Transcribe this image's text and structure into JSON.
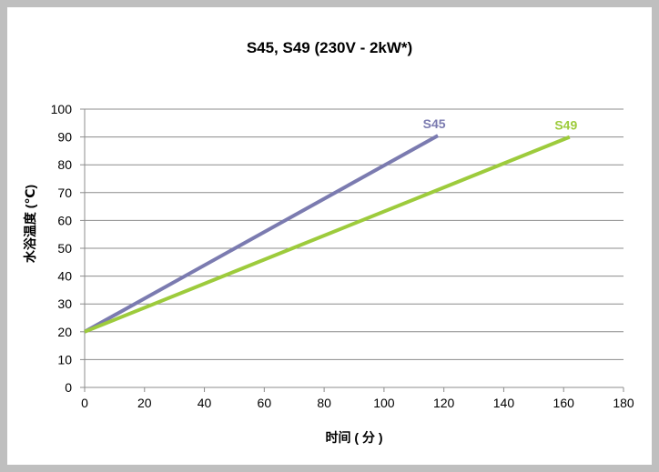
{
  "chart_data": {
    "type": "line",
    "title": "S45, S49 (230V - 2kW*)",
    "xlabel": "时间 ( 分 )",
    "ylabel": "水浴温度 (℃)",
    "xlim": [
      0,
      180
    ],
    "ylim": [
      0,
      100
    ],
    "x_ticks": [
      "0",
      "20",
      "40",
      "60",
      "80",
      "100",
      "120",
      "140",
      "160",
      "180"
    ],
    "y_ticks": [
      "0",
      "10",
      "20",
      "30",
      "40",
      "50",
      "60",
      "70",
      "80",
      "90",
      "100"
    ],
    "grid": true,
    "series": [
      {
        "name": "S45",
        "color": "#7b7bb0",
        "x": [
          0,
          118
        ],
        "y": [
          20,
          90.5
        ]
      },
      {
        "name": "S49",
        "color": "#9dcb3c",
        "x": [
          0,
          162
        ],
        "y": [
          20,
          90
        ]
      }
    ]
  }
}
